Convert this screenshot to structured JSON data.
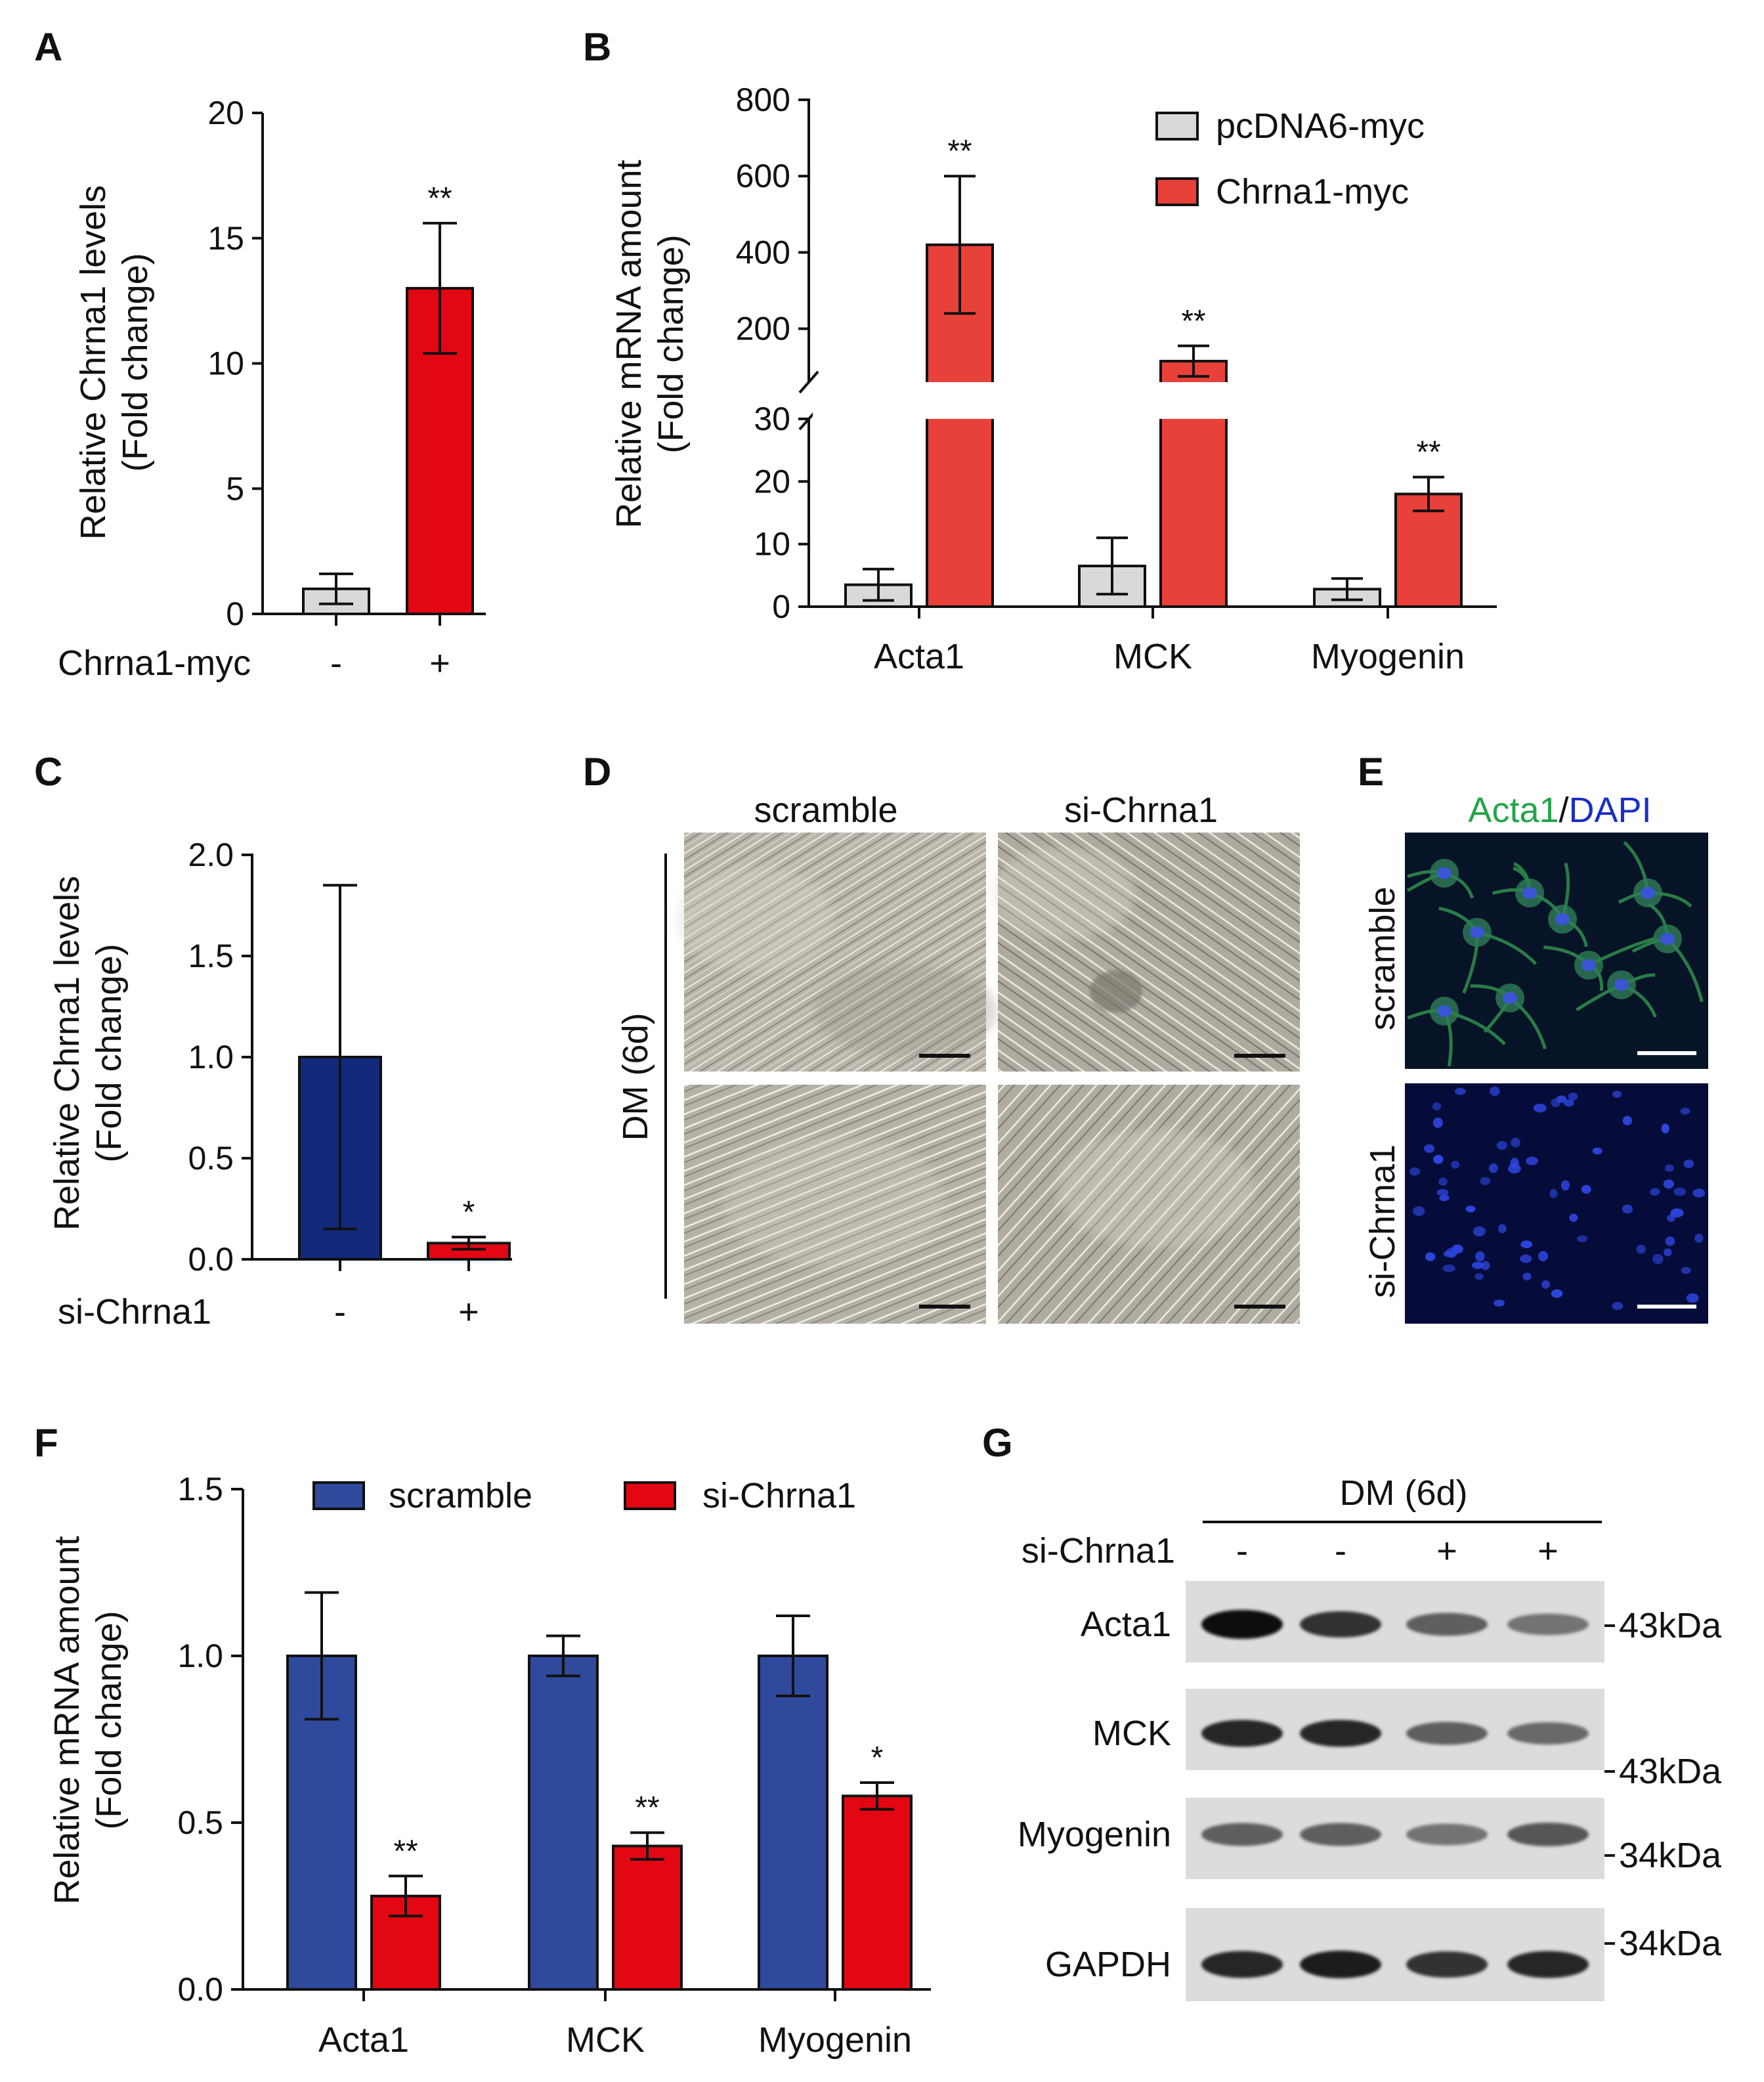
{
  "colors": {
    "gray": "#d9d9d9",
    "red": "#e30613",
    "red_b": "#e8413a",
    "blue": "#12297a",
    "blue_f": "#2f4a9c",
    "green": "#22a54a",
    "dapi": "#1a2fc4"
  },
  "panels": {
    "A": "A",
    "B": "B",
    "C": "C",
    "D": "D",
    "E": "E",
    "F": "F",
    "G": "G"
  },
  "chart_data": [
    {
      "id": "A",
      "type": "bar",
      "ylabel": [
        "Relative Chrna1 levels",
        "(Fold change)"
      ],
      "ylim": [
        0,
        20
      ],
      "yticks": [
        0,
        5,
        10,
        15,
        20
      ],
      "row_label": "Chrna1-myc",
      "categories": [
        "-",
        "+"
      ],
      "values": [
        1.0,
        13.0
      ],
      "errors": [
        0.6,
        2.6
      ],
      "colors": [
        "gray",
        "red"
      ],
      "annotations": [
        "",
        "**"
      ]
    },
    {
      "id": "B",
      "type": "bar",
      "ylabel": [
        "Relative mRNA amount",
        "(Fold change)"
      ],
      "axis_break": true,
      "ylim_lower": [
        0,
        30
      ],
      "ylim_upper": [
        60,
        800
      ],
      "yticks_lower": [
        0,
        10,
        20,
        30
      ],
      "yticks_upper": [
        200,
        400,
        600,
        800
      ],
      "categories": [
        "Acta1",
        "MCK",
        "Myogenin"
      ],
      "series": [
        {
          "name": "pcDNA6-myc",
          "color": "gray",
          "values": [
            3.5,
            6.5,
            2.8
          ],
          "errors": [
            2.5,
            4.5,
            1.7
          ],
          "annotations": [
            "",
            "",
            ""
          ]
        },
        {
          "name": "Chrna1-myc",
          "color": "red_b",
          "values": [
            420,
            115,
            18
          ],
          "errors": [
            180,
            40,
            2.7
          ],
          "annotations": [
            "**",
            "**",
            "**"
          ]
        }
      ]
    },
    {
      "id": "C",
      "type": "bar",
      "ylabel": [
        "Relative Chrna1 levels",
        "(Fold change)"
      ],
      "ylim": [
        0,
        2.0
      ],
      "yticks": [
        "0.0",
        "0.5",
        "1.0",
        "1.5",
        "2.0"
      ],
      "row_label": "si-Chrna1",
      "categories": [
        "-",
        "+"
      ],
      "values": [
        1.0,
        0.08
      ],
      "errors": [
        0.85,
        0.03
      ],
      "colors": [
        "blue",
        "red"
      ],
      "annotations": [
        "",
        "*"
      ]
    },
    {
      "id": "F",
      "type": "bar",
      "ylabel": [
        "Relative mRNA amount",
        "(Fold change)"
      ],
      "ylim": [
        0,
        1.5
      ],
      "yticks": [
        "0.0",
        "0.5",
        "1.0",
        "1.5"
      ],
      "categories": [
        "Acta1",
        "MCK",
        "Myogenin"
      ],
      "series": [
        {
          "name": "scramble",
          "color": "blue_f",
          "values": [
            1.0,
            1.0,
            1.0
          ],
          "errors": [
            0.19,
            0.06,
            0.12
          ],
          "annotations": [
            "",
            "",
            ""
          ]
        },
        {
          "name": "si-Chrna1",
          "color": "red",
          "values": [
            0.28,
            0.43,
            0.58
          ],
          "errors": [
            0.06,
            0.04,
            0.04
          ],
          "annotations": [
            "**",
            "**",
            "*"
          ]
        }
      ]
    }
  ],
  "panel_D": {
    "columns": [
      "scramble",
      "si-Chrna1"
    ],
    "row_label": "DM (6d)"
  },
  "panel_E": {
    "title_green": "Acta1",
    "title_sep": "/",
    "title_blue": "DAPI",
    "rows": [
      "scramble",
      "si-Chrna1"
    ]
  },
  "panel_G": {
    "header": "DM (6d)",
    "row_label": "si-Chrna1",
    "lanes": [
      "-",
      "-",
      "+",
      "+"
    ],
    "bands": [
      {
        "label": "Acta1",
        "marker": "43kDa",
        "intensity": [
          1.0,
          0.8,
          0.55,
          0.45
        ]
      },
      {
        "label": "MCK",
        "marker": "43kDa",
        "intensity": [
          0.85,
          0.85,
          0.55,
          0.5
        ]
      },
      {
        "label": "Myogenin",
        "marker": "34kDa",
        "intensity": [
          0.55,
          0.55,
          0.45,
          0.6
        ]
      },
      {
        "label": "GAPDH",
        "marker": "34kDa",
        "intensity": [
          0.85,
          0.9,
          0.8,
          0.85
        ]
      }
    ]
  }
}
